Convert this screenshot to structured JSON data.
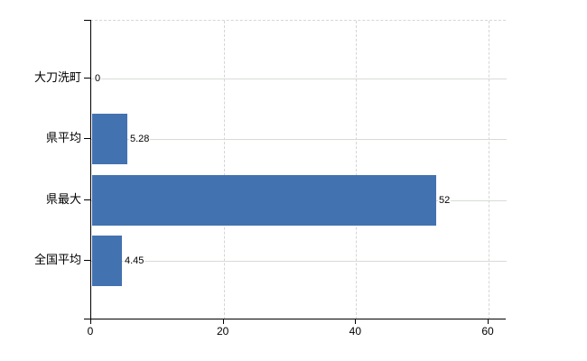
{
  "chart_data": {
    "type": "bar",
    "orientation": "horizontal",
    "title": "",
    "categories": [
      "大刀洗町",
      "県平均",
      "県最大",
      "全国平均"
    ],
    "values": [
      0,
      5.28,
      52,
      4.45
    ],
    "value_labels": [
      "0",
      "5.28",
      "52",
      "4.45"
    ],
    "x_ticks": [
      0,
      20,
      40,
      60
    ],
    "x_tick_labels": [
      "0",
      "20",
      "40",
      "60"
    ],
    "xlim": [
      0,
      62.7
    ],
    "grid": true,
    "legend": false,
    "bar_color": "#4372b0",
    "axis_color": "#000000",
    "gridline_color": "#d6ddd4",
    "background_color": "#ffffff"
  }
}
